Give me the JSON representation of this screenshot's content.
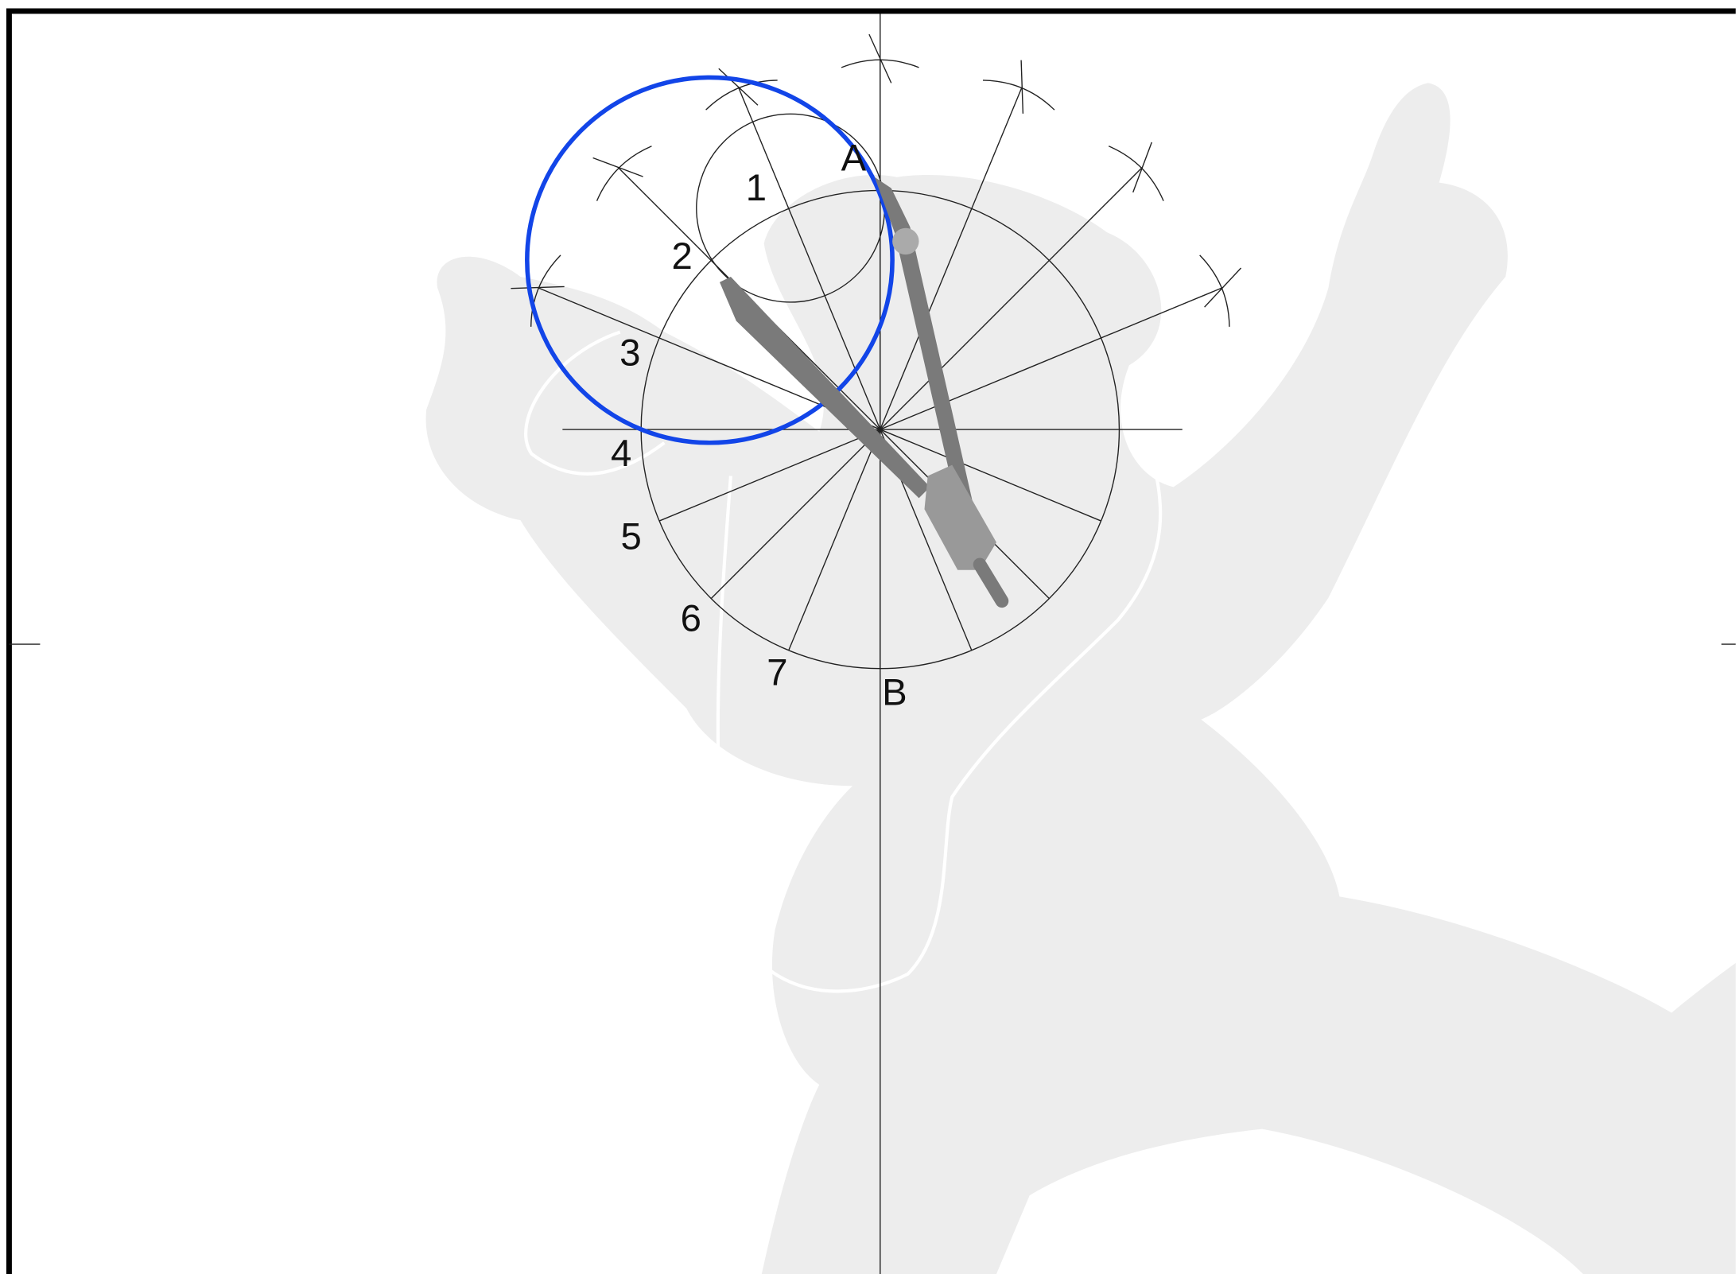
{
  "labels": {
    "point_a": "A",
    "point_b": "B",
    "divisions": [
      "1",
      "2",
      "3",
      "4",
      "5",
      "6",
      "7"
    ]
  }
}
